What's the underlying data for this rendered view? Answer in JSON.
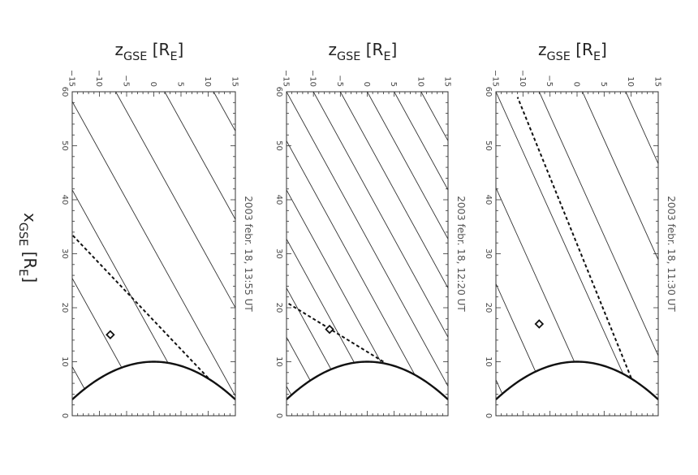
{
  "chart_data": [
    {
      "type": "line",
      "title": "2003 febr. 18, 13:55 UT",
      "xlabel": "x_GSE [R_E]",
      "ylabel": "z_GSE [R_E]",
      "xlim": [
        0,
        60
      ],
      "ylim": [
        -15,
        15
      ],
      "x_ticks": [
        0,
        10,
        20,
        30,
        40,
        50,
        60
      ],
      "y_ticks": [
        -15,
        -10,
        -5,
        0,
        5,
        10,
        15
      ],
      "bow_shock": {
        "vertex_x": 10,
        "half_width_at_x3": 15
      },
      "field_lines": {
        "slope_dz_dx": -0.55,
        "z_intercepts_at_x0": [
          -19,
          -10,
          -1,
          8,
          17,
          26,
          35,
          44
        ]
      },
      "connection_line": {
        "x": [
          7,
          33.5
        ],
        "z": [
          10,
          -15
        ]
      },
      "spacecraft": {
        "x": 15,
        "z": -8
      }
    },
    {
      "type": "line",
      "title": "2003 febr. 18, 12:20 UT",
      "xlabel": "",
      "ylabel": "z_GSE [R_E]",
      "xlim": [
        0,
        60
      ],
      "ylim": [
        -15,
        15
      ],
      "x_ticks": [
        0,
        10,
        20,
        30,
        40,
        50,
        60
      ],
      "y_ticks": [
        -15,
        -10,
        -5,
        0,
        5,
        10,
        15
      ],
      "bow_shock": {
        "vertex_x": 10,
        "half_width_at_x3": 15
      },
      "field_lines": {
        "slope_dz_dx": -0.55,
        "z_intercepts_at_x0": [
          -17,
          -12,
          -7,
          -2,
          3,
          8,
          13,
          18,
          23,
          28,
          33,
          38,
          43,
          48
        ]
      },
      "connection_line": {
        "x": [
          10,
          21
        ],
        "z": [
          3,
          -15
        ]
      },
      "spacecraft": {
        "x": 16,
        "z": -7
      }
    },
    {
      "type": "line",
      "title": "2003 febr. 18, 11:30 UT",
      "xlabel": "",
      "ylabel": "z_GSE [R_E]",
      "xlim": [
        0,
        60
      ],
      "ylim": [
        -15,
        15
      ],
      "x_ticks": [
        0,
        10,
        20,
        30,
        40,
        50,
        60
      ],
      "y_ticks": [
        -15,
        -10,
        -5,
        0,
        5,
        10,
        15
      ],
      "bow_shock": {
        "vertex_x": 10,
        "half_width_at_x3": 15
      },
      "field_lines": {
        "slope_dz_dx": -0.45,
        "z_intercepts_at_x0": [
          -12,
          -4,
          4,
          12,
          20,
          28,
          36
        ]
      },
      "connection_line": {
        "x": [
          7,
          59
        ],
        "z": [
          10,
          -11
        ]
      },
      "spacecraft": {
        "x": 17,
        "z": -7
      }
    }
  ],
  "labels": {
    "z_axis_main": "z",
    "z_axis_sub": "GSE",
    "z_axis_unit": "[R",
    "z_axis_unit_sub": "E",
    "z_axis_close": "]",
    "x_axis_main": "x",
    "x_axis_sub": "GSE",
    "x_axis_unit": "[R",
    "x_axis_unit_sub": "E",
    "x_axis_close": "]"
  }
}
